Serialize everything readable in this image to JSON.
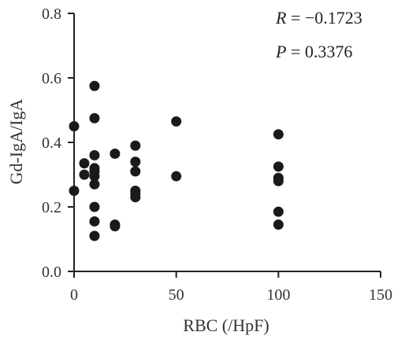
{
  "chart_data": {
    "type": "scatter",
    "xlabel": "RBC (/HpF)",
    "ylabel": "Gd-IgA/IgA",
    "xlim": [
      0,
      150
    ],
    "ylim": [
      0.0,
      0.8
    ],
    "xticks": [
      "0",
      "50",
      "100",
      "150"
    ],
    "yticks": [
      "0.0",
      "0.2",
      "0.4",
      "0.6",
      "0.8"
    ],
    "grid": false,
    "annotations": {
      "r_var": "R",
      "r_text": " = −0.1723",
      "p_var": "P",
      "p_text": " = 0.3376"
    },
    "points": [
      {
        "x": 0,
        "y": 0.45
      },
      {
        "x": 0,
        "y": 0.25
      },
      {
        "x": 5,
        "y": 0.335
      },
      {
        "x": 5,
        "y": 0.3
      },
      {
        "x": 10,
        "y": 0.575
      },
      {
        "x": 10,
        "y": 0.475
      },
      {
        "x": 10,
        "y": 0.36
      },
      {
        "x": 10,
        "y": 0.32
      },
      {
        "x": 10,
        "y": 0.31
      },
      {
        "x": 10,
        "y": 0.295
      },
      {
        "x": 10,
        "y": 0.27
      },
      {
        "x": 10,
        "y": 0.2
      },
      {
        "x": 10,
        "y": 0.155
      },
      {
        "x": 10,
        "y": 0.11
      },
      {
        "x": 20,
        "y": 0.365
      },
      {
        "x": 20,
        "y": 0.145
      },
      {
        "x": 20,
        "y": 0.14
      },
      {
        "x": 30,
        "y": 0.39
      },
      {
        "x": 30,
        "y": 0.34
      },
      {
        "x": 30,
        "y": 0.31
      },
      {
        "x": 30,
        "y": 0.25
      },
      {
        "x": 30,
        "y": 0.24
      },
      {
        "x": 30,
        "y": 0.23
      },
      {
        "x": 50,
        "y": 0.465
      },
      {
        "x": 50,
        "y": 0.295
      },
      {
        "x": 100,
        "y": 0.425
      },
      {
        "x": 100,
        "y": 0.325
      },
      {
        "x": 100,
        "y": 0.29
      },
      {
        "x": 100,
        "y": 0.28
      },
      {
        "x": 100,
        "y": 0.185
      },
      {
        "x": 100,
        "y": 0.145
      }
    ]
  }
}
